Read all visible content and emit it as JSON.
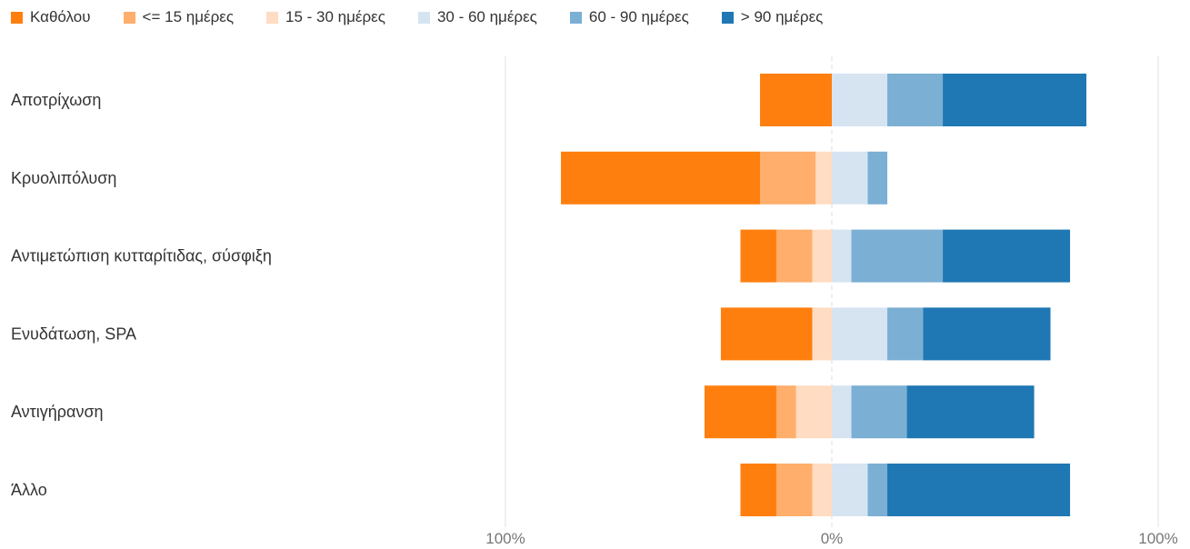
{
  "chart_data": {
    "type": "bar",
    "orientation": "horizontal",
    "stacking": "diverging",
    "categories": [
      "Αποτρίχωση",
      "Κρυολιπόλυση",
      "Αντιμετώπιση κυτταρίτιδας, σύσφιξη",
      "Ενυδάτωση, SPA",
      "Αντιγήρανση",
      "Άλλο"
    ],
    "series": [
      {
        "name": "Καθόλου",
        "color": "#FF7F0E",
        "side": "negative",
        "values": [
          22,
          61,
          11,
          28,
          22,
          11
        ]
      },
      {
        "name": "<= 15 ημέρες",
        "color": "#FFAE6B",
        "side": "negative",
        "values": [
          0,
          17,
          11,
          0,
          6,
          11
        ]
      },
      {
        "name": "15 - 30 ημέρες",
        "color": "#FFDCC2",
        "side": "negative",
        "values": [
          0,
          5,
          6,
          6,
          11,
          6
        ]
      },
      {
        "name": "30 - 60 ημέρες",
        "color": "#D6E4F2",
        "side": "positive",
        "values": [
          17,
          11,
          6,
          17,
          6,
          11
        ]
      },
      {
        "name": "60 - 90 ημέρες",
        "color": "#7BAFD4",
        "side": "positive",
        "values": [
          17,
          6,
          28,
          11,
          17,
          6
        ]
      },
      {
        "name": "> 90 ημέρες",
        "color": "#1F77B4",
        "side": "positive",
        "values": [
          44,
          0,
          39,
          39,
          39,
          56
        ]
      }
    ],
    "xlim": [
      -100,
      100
    ],
    "x_ticks": [
      "100%",
      "0%",
      "100%"
    ],
    "legend_position": "top-left",
    "grid": true
  }
}
